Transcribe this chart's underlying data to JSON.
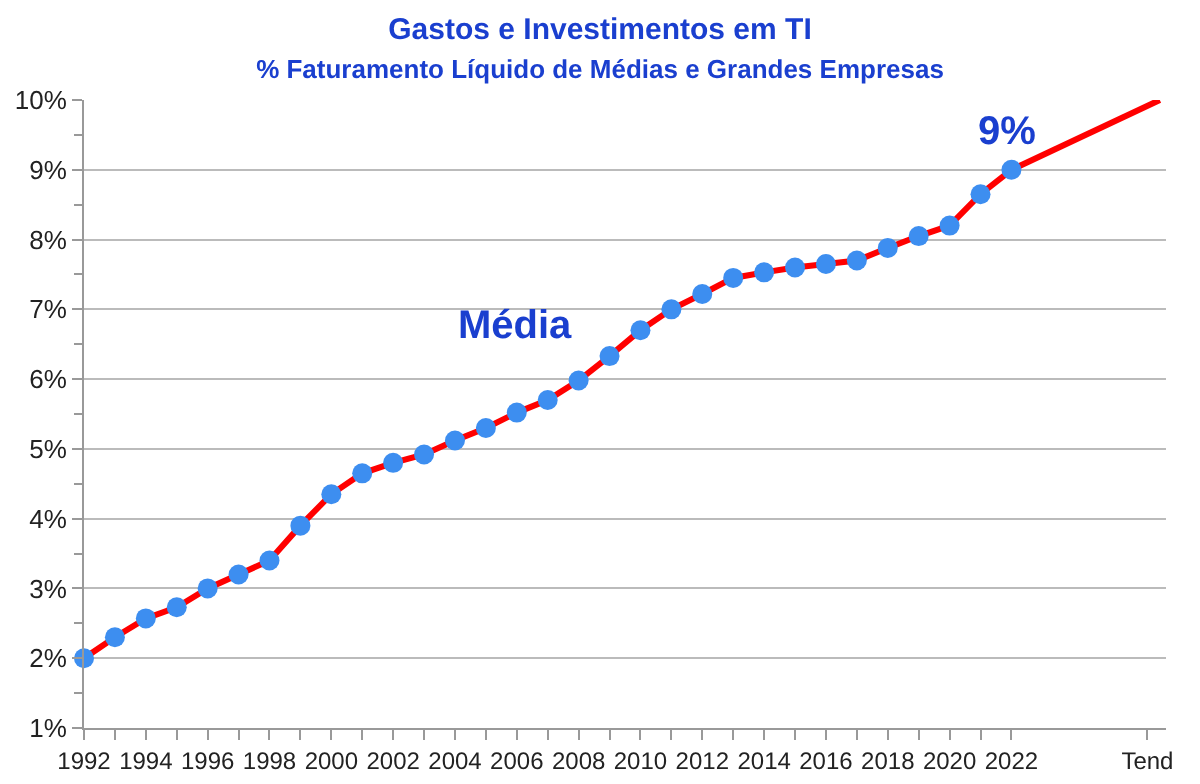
{
  "chart_data": {
    "type": "line",
    "title": "Gastos e Investimentos em TI",
    "subtitle": "% Faturamento Líquido de Médias e Grandes Empresas",
    "x": [
      1992,
      1993,
      1994,
      1995,
      1996,
      1997,
      1998,
      1999,
      2000,
      2001,
      2002,
      2003,
      2004,
      2005,
      2006,
      2007,
      2008,
      2009,
      2010,
      2011,
      2012,
      2013,
      2014,
      2015,
      2016,
      2017,
      2018,
      2019,
      2020,
      2021,
      2022
    ],
    "series": [
      {
        "color": "#ff0000",
        "values": [
          2.0,
          2.3,
          2.57,
          2.73,
          3.0,
          3.2,
          3.4,
          3.9,
          4.35,
          4.65,
          4.8,
          4.92,
          5.12,
          5.3,
          5.52,
          5.7,
          5.98,
          6.33,
          6.7,
          7.0,
          7.22,
          7.45,
          7.53,
          7.6,
          7.65,
          7.7,
          7.88,
          8.05,
          8.2,
          8.65,
          9.0
        ]
      },
      {
        "type": "line",
        "color": "#ff0000",
        "marker": "none",
        "x": [
          2022,
          2026.8
        ],
        "values": [
          9.0,
          10.0
        ]
      }
    ],
    "marker": "circle",
    "grid": "y",
    "xlim": [
      1992,
      2027
    ],
    "xticks": [
      1992,
      {
        "value": 1993,
        "label": null
      },
      1994,
      {
        "value": 1995,
        "label": null
      },
      1996,
      {
        "value": 1997,
        "label": null
      },
      1998,
      {
        "value": 1999,
        "label": null
      },
      2000,
      {
        "value": 2001,
        "label": null
      },
      2002,
      {
        "value": 2003,
        "label": null
      },
      2004,
      {
        "value": 2005,
        "label": null
      },
      2006,
      {
        "value": 2007,
        "label": null
      },
      2008,
      {
        "value": 2009,
        "label": null
      },
      2010,
      {
        "value": 2011,
        "label": null
      },
      2012,
      {
        "value": 2013,
        "label": null
      },
      2014,
      {
        "value": 2015,
        "label": null
      },
      2016,
      {
        "value": 2017,
        "label": null
      },
      2018,
      {
        "value": 2019,
        "label": null
      },
      2020,
      {
        "value": 2021,
        "label": null
      },
      2022,
      {
        "value": 2026.4,
        "label": "Tend"
      }
    ],
    "ylim": [
      1,
      10
    ],
    "yticks": [
      {
        "value": 1,
        "label": "1%"
      },
      {
        "value": 1.5,
        "label": null
      },
      {
        "value": 2,
        "label": "2%"
      },
      {
        "value": 2.5,
        "label": null
      },
      {
        "value": 3,
        "label": "3%"
      },
      {
        "value": 3.5,
        "label": null
      },
      {
        "value": 4,
        "label": "4%"
      },
      {
        "value": 4.5,
        "label": null
      },
      {
        "value": 5,
        "label": "5%"
      },
      {
        "value": 5.5,
        "label": null
      },
      {
        "value": 6,
        "label": "6%"
      },
      {
        "value": 6.5,
        "label": null
      },
      {
        "value": 7,
        "label": "7%"
      },
      {
        "value": 7.5,
        "label": null
      },
      {
        "value": 8,
        "label": "8%"
      },
      {
        "value": 8.5,
        "label": null
      },
      {
        "value": 9,
        "label": "9%"
      },
      {
        "value": 9.5,
        "label": null
      },
      {
        "value": 10,
        "label": "10%"
      }
    ],
    "annotations": [
      "Média",
      {
        "text": "9%",
        "x": 2022,
        "y": 9.0
      }
    ]
  }
}
